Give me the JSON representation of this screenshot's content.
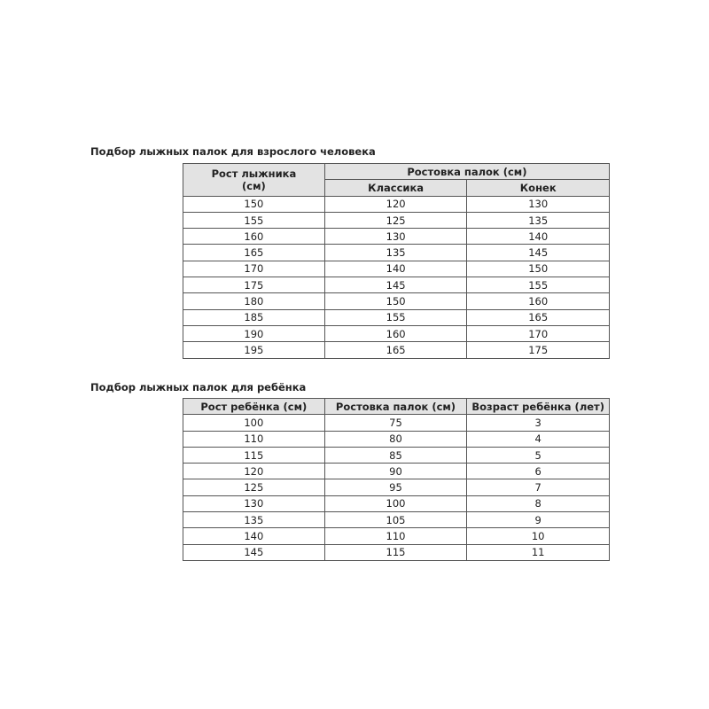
{
  "adult": {
    "title": "Подбор лыжных палок для взрослого человека",
    "headers": {
      "height": "Рост лыжника (см)",
      "poles": "Ростовка палок (см)",
      "classic": "Классика",
      "skate": "Конек"
    },
    "rows": [
      [
        "150",
        "120",
        "130"
      ],
      [
        "155",
        "125",
        "135"
      ],
      [
        "160",
        "130",
        "140"
      ],
      [
        "165",
        "135",
        "145"
      ],
      [
        "170",
        "140",
        "150"
      ],
      [
        "175",
        "145",
        "155"
      ],
      [
        "180",
        "150",
        "160"
      ],
      [
        "185",
        "155",
        "165"
      ],
      [
        "190",
        "160",
        "170"
      ],
      [
        "195",
        "165",
        "175"
      ]
    ]
  },
  "child": {
    "title": "Подбор лыжных палок для ребёнка",
    "headers": [
      "Рост ребёнка (см)",
      "Ростовка палок (см)",
      "Возраст ребёнка (лет)"
    ],
    "rows": [
      [
        "100",
        "75",
        "3"
      ],
      [
        "110",
        "80",
        "4"
      ],
      [
        "115",
        "85",
        "5"
      ],
      [
        "120",
        "90",
        "6"
      ],
      [
        "125",
        "95",
        "7"
      ],
      [
        "130",
        "100",
        "8"
      ],
      [
        "135",
        "105",
        "9"
      ],
      [
        "140",
        "110",
        "10"
      ],
      [
        "145",
        "115",
        "11"
      ]
    ]
  }
}
